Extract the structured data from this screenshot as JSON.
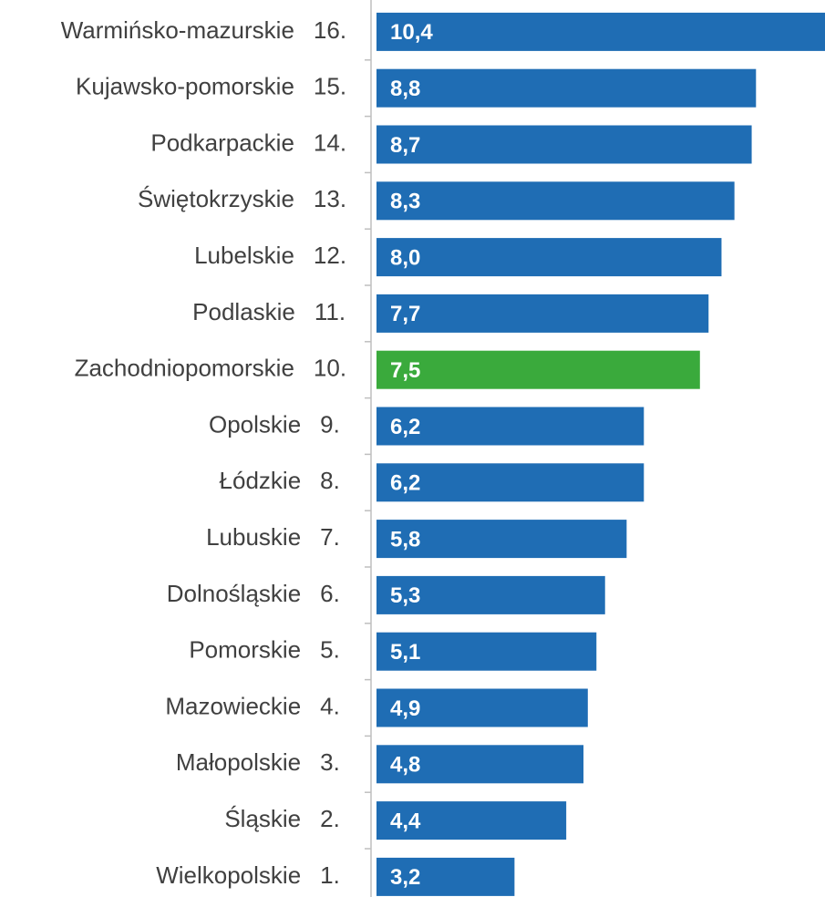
{
  "chart_data": {
    "type": "bar",
    "orientation": "horizontal",
    "categories": [
      "Warmińsko-mazurskie",
      "Kujawsko-pomorskie",
      "Podkarpackie",
      "Świętokrzyskie",
      "Lubelskie",
      "Podlaskie",
      "Zachodniopomorskie",
      "Opolskie",
      "Łódzkie",
      "Lubuskie",
      "Dolnośląskie",
      "Pomorskie",
      "Mazowieckie",
      "Małopolskie",
      "Śląskie",
      "Wielkopolskie"
    ],
    "ranks": [
      "16.",
      "15.",
      "14.",
      "13.",
      "12.",
      "11.",
      "10.",
      "9.",
      "8.",
      "7.",
      "6.",
      "5.",
      "4.",
      "3.",
      "2.",
      "1."
    ],
    "values": [
      10.4,
      8.8,
      8.7,
      8.3,
      8.0,
      7.7,
      7.5,
      6.2,
      6.2,
      5.8,
      5.3,
      5.1,
      4.9,
      4.8,
      4.4,
      3.2
    ],
    "value_labels": [
      "10,4",
      "8,8",
      "8,7",
      "8,3",
      "8,0",
      "7,7",
      "7,5",
      "6,2",
      "6,2",
      "5,8",
      "5,3",
      "5,1",
      "4,9",
      "4,8",
      "4,4",
      "3,2"
    ],
    "colors": [
      "#1f6db4",
      "#1f6db4",
      "#1f6db4",
      "#1f6db4",
      "#1f6db4",
      "#1f6db4",
      "#3aaa3c",
      "#1f6db4",
      "#1f6db4",
      "#1f6db4",
      "#1f6db4",
      "#1f6db4",
      "#1f6db4",
      "#1f6db4",
      "#1f6db4",
      "#1f6db4"
    ],
    "grid": false
  }
}
